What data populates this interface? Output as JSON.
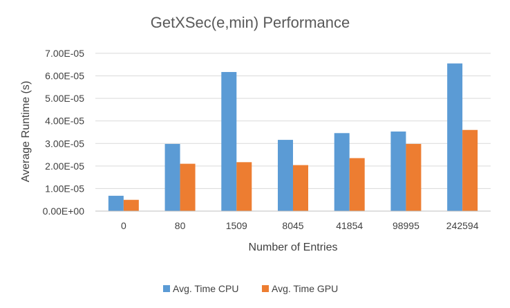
{
  "chart_data": {
    "type": "bar",
    "title": "GetXSec(e,min) Performance",
    "xlabel": "Number of Entries",
    "ylabel": "Average Runtime (s)",
    "categories": [
      "0",
      "80",
      "1509",
      "8045",
      "41854",
      "98995",
      "242594"
    ],
    "series": [
      {
        "name": "Avg. Time CPU",
        "color": "#5b9bd5",
        "values": [
          6.8e-06,
          2.98e-05,
          6.17e-05,
          3.16e-05,
          3.46e-05,
          3.53e-05,
          6.55e-05
        ]
      },
      {
        "name": "Avg. Time GPU",
        "color": "#ed7d31",
        "values": [
          5e-06,
          2.1e-05,
          2.17e-05,
          2.04e-05,
          2.35e-05,
          2.98e-05,
          3.6e-05
        ]
      }
    ],
    "ylim": [
      0,
      7e-05
    ],
    "yticks": [
      "0.00E+00",
      "1.00E-05",
      "2.00E-05",
      "3.00E-05",
      "4.00E-05",
      "5.00E-05",
      "6.00E-05",
      "7.00E-05"
    ],
    "grid": true,
    "legend_position": "bottom"
  }
}
